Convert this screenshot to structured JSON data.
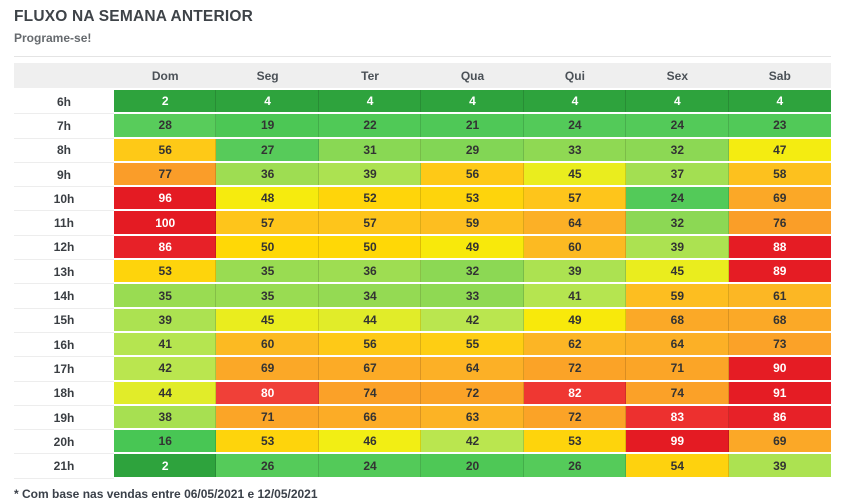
{
  "page": {
    "title": "FLUXO NA SEMANA ANTERIOR",
    "subtitle": "Programe-se!",
    "footnote": "* Com base nas vendas entre 06/05/2021 e 12/05/2021"
  },
  "chart_data": {
    "type": "heatmap",
    "title": "FLUXO NA SEMANA ANTERIOR",
    "subtitle": "Programe-se!",
    "columns": [
      "Dom",
      "Seg",
      "Ter",
      "Qua",
      "Qui",
      "Sex",
      "Sab"
    ],
    "rows": [
      "6h",
      "7h",
      "8h",
      "9h",
      "10h",
      "11h",
      "12h",
      "13h",
      "14h",
      "15h",
      "16h",
      "17h",
      "18h",
      "19h",
      "20h",
      "21h"
    ],
    "values": [
      [
        2,
        4,
        4,
        4,
        4,
        4,
        4
      ],
      [
        28,
        19,
        22,
        21,
        24,
        24,
        23
      ],
      [
        56,
        27,
        31,
        29,
        33,
        32,
        47
      ],
      [
        77,
        36,
        39,
        56,
        45,
        37,
        58
      ],
      [
        96,
        48,
        52,
        53,
        57,
        24,
        69
      ],
      [
        100,
        57,
        57,
        59,
        64,
        32,
        76
      ],
      [
        86,
        50,
        50,
        49,
        60,
        39,
        88
      ],
      [
        53,
        35,
        36,
        32,
        39,
        45,
        89
      ],
      [
        35,
        35,
        34,
        33,
        41,
        59,
        61
      ],
      [
        39,
        45,
        44,
        42,
        49,
        68,
        68
      ],
      [
        41,
        60,
        56,
        55,
        62,
        64,
        73
      ],
      [
        42,
        69,
        67,
        64,
        72,
        71,
        90
      ],
      [
        44,
        80,
        74,
        72,
        82,
        74,
        91
      ],
      [
        38,
        71,
        66,
        63,
        72,
        83,
        86
      ],
      [
        16,
        53,
        46,
        42,
        53,
        99,
        69
      ],
      [
        2,
        26,
        24,
        20,
        26,
        54,
        39
      ]
    ],
    "value_range": [
      0,
      100
    ],
    "legend": "none",
    "colors": {
      "header_bg": "#efefef",
      "header_text": "#4b5157",
      "row_label_text": "#3a3e43",
      "dark_text": "#333333",
      "light_text": "#ffffff",
      "light_text_at_or_below": 4,
      "light_text_at_or_above": 80,
      "scale_stops": [
        [
          0,
          "#2ea33d"
        ],
        [
          4,
          "#2ea33d"
        ],
        [
          15,
          "#47c553"
        ],
        [
          28,
          "#58cc5b"
        ],
        [
          29,
          "#82d655"
        ],
        [
          33,
          "#8fd953"
        ],
        [
          36,
          "#9edd52"
        ],
        [
          42,
          "#bae64f"
        ],
        [
          43,
          "#d9eb33"
        ],
        [
          46,
          "#f2ee14"
        ],
        [
          49,
          "#f8e90b"
        ],
        [
          50,
          "#ffd806"
        ],
        [
          54,
          "#fed20e"
        ],
        [
          56,
          "#fec917"
        ],
        [
          58,
          "#fdc11e"
        ],
        [
          61,
          "#fcb724"
        ],
        [
          65,
          "#fcae26"
        ],
        [
          70,
          "#fba627"
        ],
        [
          79,
          "#fa9a29"
        ],
        [
          80,
          "#f04038"
        ],
        [
          82,
          "#ef3732"
        ],
        [
          85,
          "#e8232a"
        ],
        [
          88,
          "#e51c24"
        ],
        [
          100,
          "#e41b23"
        ]
      ]
    }
  }
}
